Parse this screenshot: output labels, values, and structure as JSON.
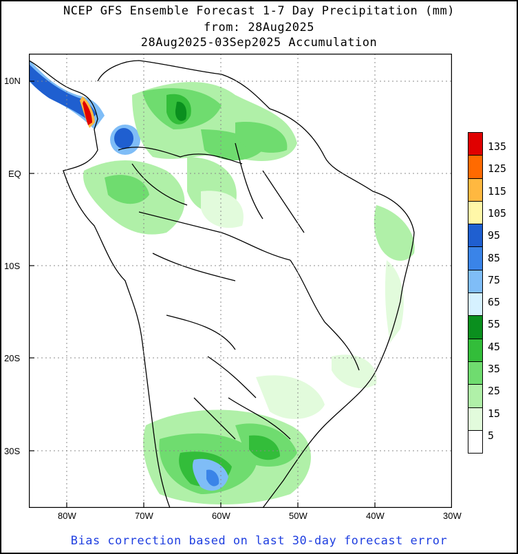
{
  "title": {
    "line1": "NCEP GFS Ensemble Forecast 1-7 Day Precipitation (mm)",
    "line2": "from: 28Aug2025",
    "line3": "28Aug2025-03Sep2025 Accumulation"
  },
  "footer": "Bias correction based on last 30-day forecast error",
  "axes": {
    "lat_labels": [
      "10N",
      "EQ",
      "10S",
      "20S",
      "30S"
    ],
    "lon_labels": [
      "80W",
      "70W",
      "60W",
      "50W",
      "40W",
      "30W"
    ]
  },
  "colorbar": {
    "labels": [
      "135",
      "125",
      "115",
      "105",
      "95",
      "85",
      "75",
      "65",
      "55",
      "45",
      "35",
      "25",
      "15",
      "5"
    ],
    "colors": [
      "#e00000",
      "#ff6a00",
      "#ffb840",
      "#fff7a8",
      "#1f5fd0",
      "#3a84e8",
      "#7fbdf7",
      "#d6f1ff",
      "#0a8f1e",
      "#33bd3a",
      "#6fdc6f",
      "#b0f0a8",
      "#e2fbdc",
      "#ffffff"
    ]
  },
  "map": {
    "region": "South America",
    "lon_range": [
      -85,
      -30
    ],
    "lat_range": [
      -37,
      13
    ]
  }
}
